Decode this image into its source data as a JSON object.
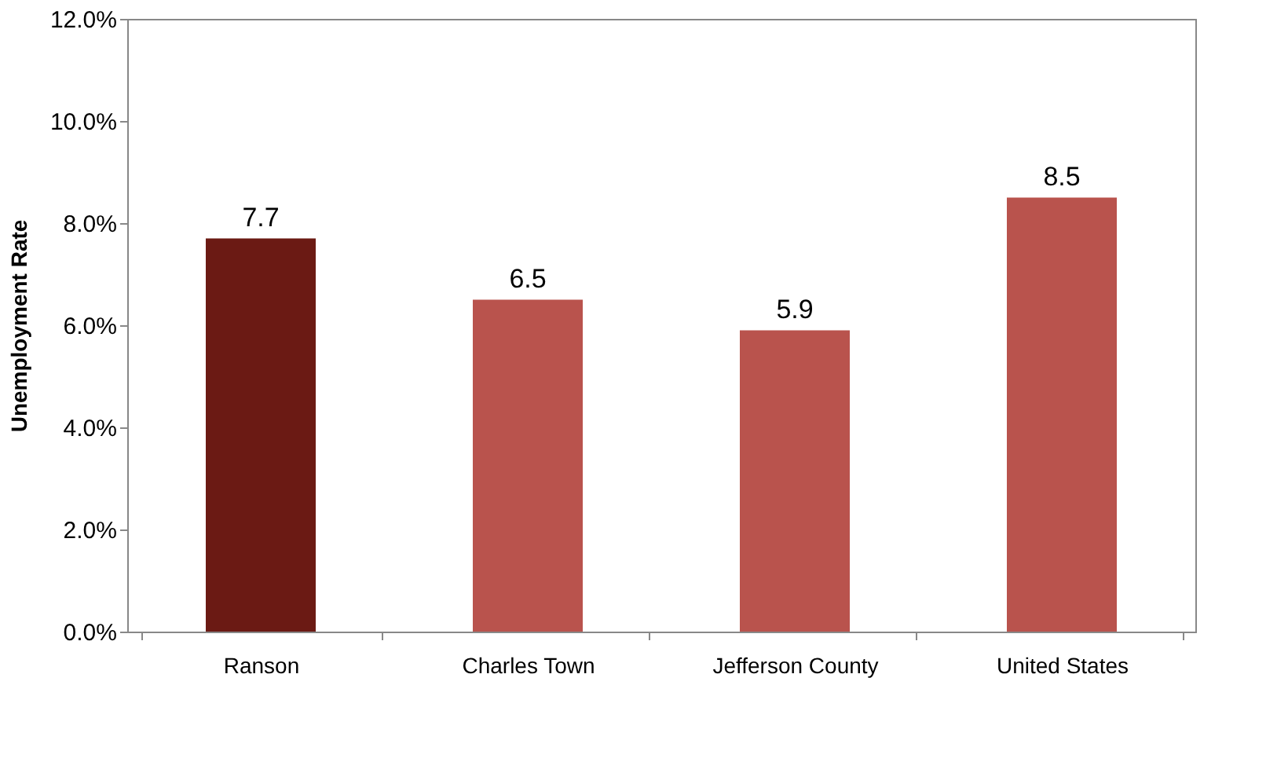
{
  "chart_data": {
    "type": "bar",
    "ylabel": "Unemployment Rate",
    "categories": [
      "Ranson",
      "Charles Town",
      "Jefferson County",
      "United States"
    ],
    "values": [
      7.7,
      6.5,
      5.9,
      8.5
    ],
    "colors": [
      "#6b1a14",
      "#b9534d",
      "#b9534d",
      "#b9534d"
    ],
    "ylim": [
      0,
      12
    ],
    "yticks": [
      {
        "value": 0,
        "label": "0.0%"
      },
      {
        "value": 2,
        "label": "2.0%"
      },
      {
        "value": 4,
        "label": "4.0%"
      },
      {
        "value": 6,
        "label": "6.0%"
      },
      {
        "value": 8,
        "label": "8.0%"
      },
      {
        "value": 10,
        "label": "10.0%"
      },
      {
        "value": 12,
        "label": "12.0%"
      }
    ],
    "data_labels": true,
    "grid": false
  }
}
